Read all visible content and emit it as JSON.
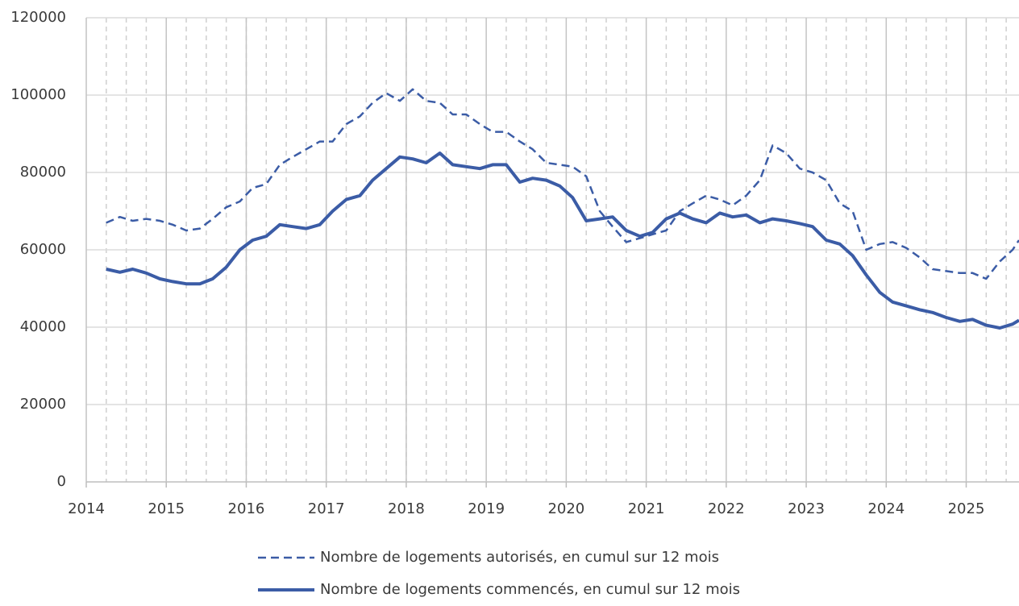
{
  "chart_data": {
    "type": "line",
    "x": [
      2014.25,
      2014.42,
      2014.58,
      2014.75,
      2014.92,
      2015.08,
      2015.25,
      2015.42,
      2015.58,
      2015.75,
      2015.92,
      2016.08,
      2016.25,
      2016.42,
      2016.58,
      2016.75,
      2016.92,
      2017.08,
      2017.25,
      2017.42,
      2017.58,
      2017.75,
      2017.92,
      2018.08,
      2018.25,
      2018.42,
      2018.58,
      2018.75,
      2018.92,
      2019.08,
      2019.25,
      2019.42,
      2019.58,
      2019.75,
      2019.92,
      2020.08,
      2020.25,
      2020.42,
      2020.58,
      2020.75,
      2020.92,
      2021.08,
      2021.25,
      2021.42,
      2021.58,
      2021.75,
      2021.92,
      2022.08,
      2022.25,
      2022.42,
      2022.58,
      2022.75,
      2022.92,
      2023.08,
      2023.25,
      2023.42,
      2023.58,
      2023.75,
      2023.92,
      2024.08,
      2024.25,
      2024.42,
      2024.58,
      2024.75,
      2024.92,
      2025.08,
      2025.25,
      2025.42,
      2025.58,
      2025.66
    ],
    "series": [
      {
        "name": "Nombre de logements autorisés, en cumul sur 12 mois",
        "color": "#3b5ca6",
        "dash": true,
        "values": [
          67000,
          68500,
          67500,
          68000,
          67500,
          66500,
          65000,
          65500,
          68000,
          71000,
          72500,
          76000,
          77000,
          82000,
          84000,
          86000,
          88000,
          88000,
          92500,
          94500,
          98000,
          100500,
          98500,
          101500,
          98500,
          98000,
          95000,
          95000,
          92500,
          90500,
          90500,
          88000,
          86000,
          82500,
          82000,
          81500,
          79000,
          70000,
          66000,
          62000,
          63000,
          64000,
          65000,
          70000,
          72000,
          74000,
          73000,
          71500,
          74000,
          78000,
          87000,
          85000,
          81000,
          80000,
          78000,
          72000,
          70000,
          60000,
          61500,
          62000,
          60500,
          58000,
          55000,
          54500,
          54000,
          54000,
          52500,
          57000,
          60000,
          62500
        ]
      },
      {
        "name": "Nombre de logements commencés, en cumul sur 12 mois",
        "color": "#3b5ca6",
        "dash": false,
        "values": [
          55000,
          54200,
          55000,
          54000,
          52500,
          51800,
          51200,
          51200,
          52500,
          55500,
          60000,
          62500,
          63500,
          66500,
          66000,
          65500,
          66500,
          70000,
          73000,
          74000,
          78000,
          81000,
          84000,
          83500,
          82500,
          85000,
          82000,
          81500,
          81000,
          82000,
          82000,
          77500,
          78500,
          78000,
          76500,
          73500,
          67500,
          68000,
          68500,
          65000,
          63500,
          64500,
          68000,
          69500,
          68000,
          67000,
          69500,
          68500,
          69000,
          67000,
          68000,
          67500,
          66800,
          66000,
          62500,
          61500,
          58500,
          53500,
          49000,
          46500,
          45500,
          44500,
          43800,
          42500,
          41500,
          42000,
          40500,
          39800,
          40800,
          41800
        ]
      }
    ],
    "xlim": [
      2014,
      2025.66
    ],
    "xticks": [
      2014,
      2015,
      2016,
      2017,
      2018,
      2019,
      2020,
      2021,
      2022,
      2023,
      2024,
      2025
    ],
    "ylim": [
      0,
      120000
    ],
    "yticks": [
      0,
      20000,
      40000,
      60000,
      80000,
      100000,
      120000
    ],
    "grid": true
  }
}
